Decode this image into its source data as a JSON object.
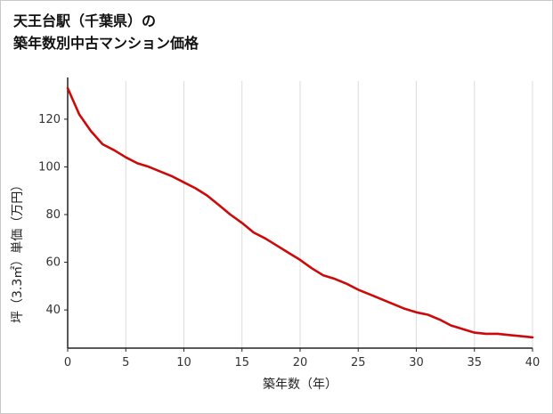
{
  "title": {
    "line1": "天王台駅（千葉県）の",
    "line2": "築年数別中古マンション価格"
  },
  "chart_data": {
    "type": "line",
    "title": "天王台駅（千葉県）の築年数別中古マンション価格",
    "xlabel": "築年数（年）",
    "ylabel": "坪（3.3㎡）単価（万円）",
    "x": [
      0,
      1,
      2,
      3,
      4,
      5,
      6,
      7,
      8,
      9,
      10,
      11,
      12,
      13,
      14,
      15,
      16,
      17,
      18,
      19,
      20,
      21,
      22,
      23,
      24,
      25,
      26,
      27,
      28,
      29,
      30,
      31,
      32,
      33,
      34,
      35,
      36,
      37,
      38,
      39,
      40
    ],
    "values": [
      133,
      122,
      115,
      109.5,
      107,
      104,
      101.5,
      100,
      98,
      96,
      93.5,
      91,
      88,
      84,
      80,
      76.5,
      72.5,
      70,
      67,
      64,
      61,
      57.5,
      54.5,
      53,
      51,
      48.5,
      46.5,
      44.5,
      42.5,
      40.5,
      39,
      38,
      36,
      33.5,
      32,
      30.5,
      30,
      30,
      29.5,
      29,
      28.5
    ],
    "xlim": [
      0,
      40
    ],
    "ylim": [
      24,
      136
    ],
    "xticks": [
      0,
      5,
      10,
      15,
      20,
      25,
      30,
      35,
      40
    ],
    "yticks": [
      40,
      60,
      80,
      100,
      120
    ],
    "line_color": "#cc0a0a",
    "axis_color": "#222222",
    "grid_color": "#dcdcdc",
    "tick_label_color": "#333333",
    "grid": "vertical",
    "legend": "none"
  }
}
